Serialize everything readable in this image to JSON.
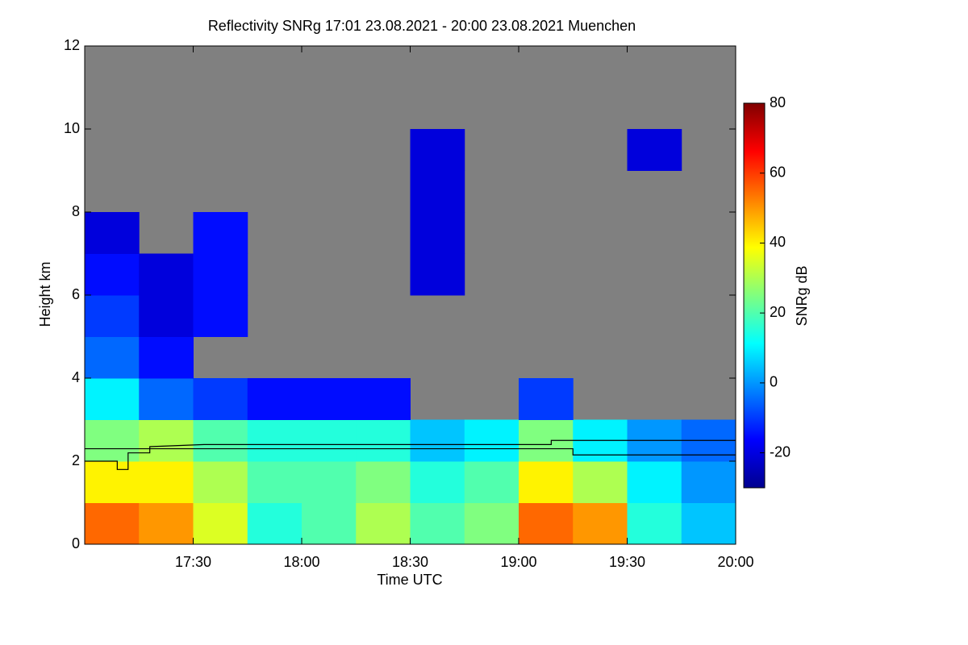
{
  "chart_data": {
    "type": "heatmap",
    "title": "Reflectivity SNRg   17:01 23.08.2021 - 20:00 23.08.2021 Muenchen",
    "x_label": "Time UTC",
    "y_label": "Height km",
    "colorbar_label": "SNRg dB",
    "xlim": [
      17.0,
      20.0
    ],
    "ylim": [
      0,
      12
    ],
    "xticks": [
      {
        "value": 17.5,
        "label": "17:30"
      },
      {
        "value": 18.0,
        "label": "18:00"
      },
      {
        "value": 18.5,
        "label": "18:30"
      },
      {
        "value": 19.0,
        "label": "19:00"
      },
      {
        "value": 19.5,
        "label": "19:30"
      },
      {
        "value": 20.0,
        "label": "20:00"
      }
    ],
    "yticks": [
      0,
      2,
      4,
      6,
      8,
      10,
      12
    ],
    "clim": [
      -30,
      80
    ],
    "cticks": [
      -20,
      0,
      20,
      40,
      60,
      80
    ],
    "x_edges": [
      17.0,
      17.25,
      17.5,
      17.75,
      18.0,
      18.25,
      18.5,
      18.75,
      19.0,
      19.25,
      19.5,
      19.75,
      20.0
    ],
    "y_edges": [
      0,
      1,
      2,
      3,
      4,
      5,
      6,
      7,
      8,
      9,
      10,
      11,
      12
    ],
    "z": [
      [
        55,
        50,
        35,
        15,
        20,
        30,
        20,
        25,
        55,
        50,
        15,
        5
      ],
      [
        40,
        40,
        30,
        20,
        20,
        25,
        15,
        20,
        40,
        30,
        10,
        0
      ],
      [
        25,
        30,
        20,
        15,
        15,
        15,
        5,
        10,
        25,
        10,
        0,
        -5
      ],
      [
        10,
        -5,
        -10,
        -15,
        -15,
        -15,
        null,
        null,
        -10,
        null,
        null,
        null
      ],
      [
        -5,
        -15,
        null,
        null,
        null,
        null,
        null,
        null,
        null,
        null,
        null,
        null
      ],
      [
        -10,
        -20,
        -15,
        null,
        null,
        null,
        null,
        null,
        null,
        null,
        null,
        null
      ],
      [
        -15,
        -20,
        -15,
        null,
        null,
        null,
        -20,
        null,
        null,
        null,
        null,
        null
      ],
      [
        -20,
        null,
        -15,
        null,
        null,
        null,
        -20,
        null,
        null,
        null,
        null,
        null
      ],
      [
        null,
        null,
        null,
        null,
        null,
        null,
        -20,
        null,
        null,
        null,
        null,
        null
      ],
      [
        null,
        null,
        null,
        null,
        null,
        null,
        -20,
        null,
        null,
        null,
        -20,
        null
      ],
      [
        null,
        null,
        null,
        null,
        null,
        null,
        null,
        null,
        null,
        null,
        null,
        null
      ],
      [
        null,
        null,
        null,
        null,
        null,
        null,
        null,
        null,
        null,
        null,
        null,
        null
      ]
    ],
    "missing_color": "#808080",
    "line_color": "#000000",
    "lines": [
      {
        "x": [
          17.0,
          17.15,
          17.15,
          17.2,
          17.2,
          17.3,
          17.3,
          17.55,
          19.15,
          19.15,
          20.0
        ],
        "values": [
          2.0,
          2.0,
          1.8,
          1.8,
          2.2,
          2.2,
          2.35,
          2.4,
          2.4,
          2.5,
          2.5
        ]
      },
      {
        "x": [
          17.0,
          19.25,
          19.25,
          20.0
        ],
        "values": [
          2.3,
          2.3,
          2.15,
          2.15
        ]
      }
    ]
  }
}
